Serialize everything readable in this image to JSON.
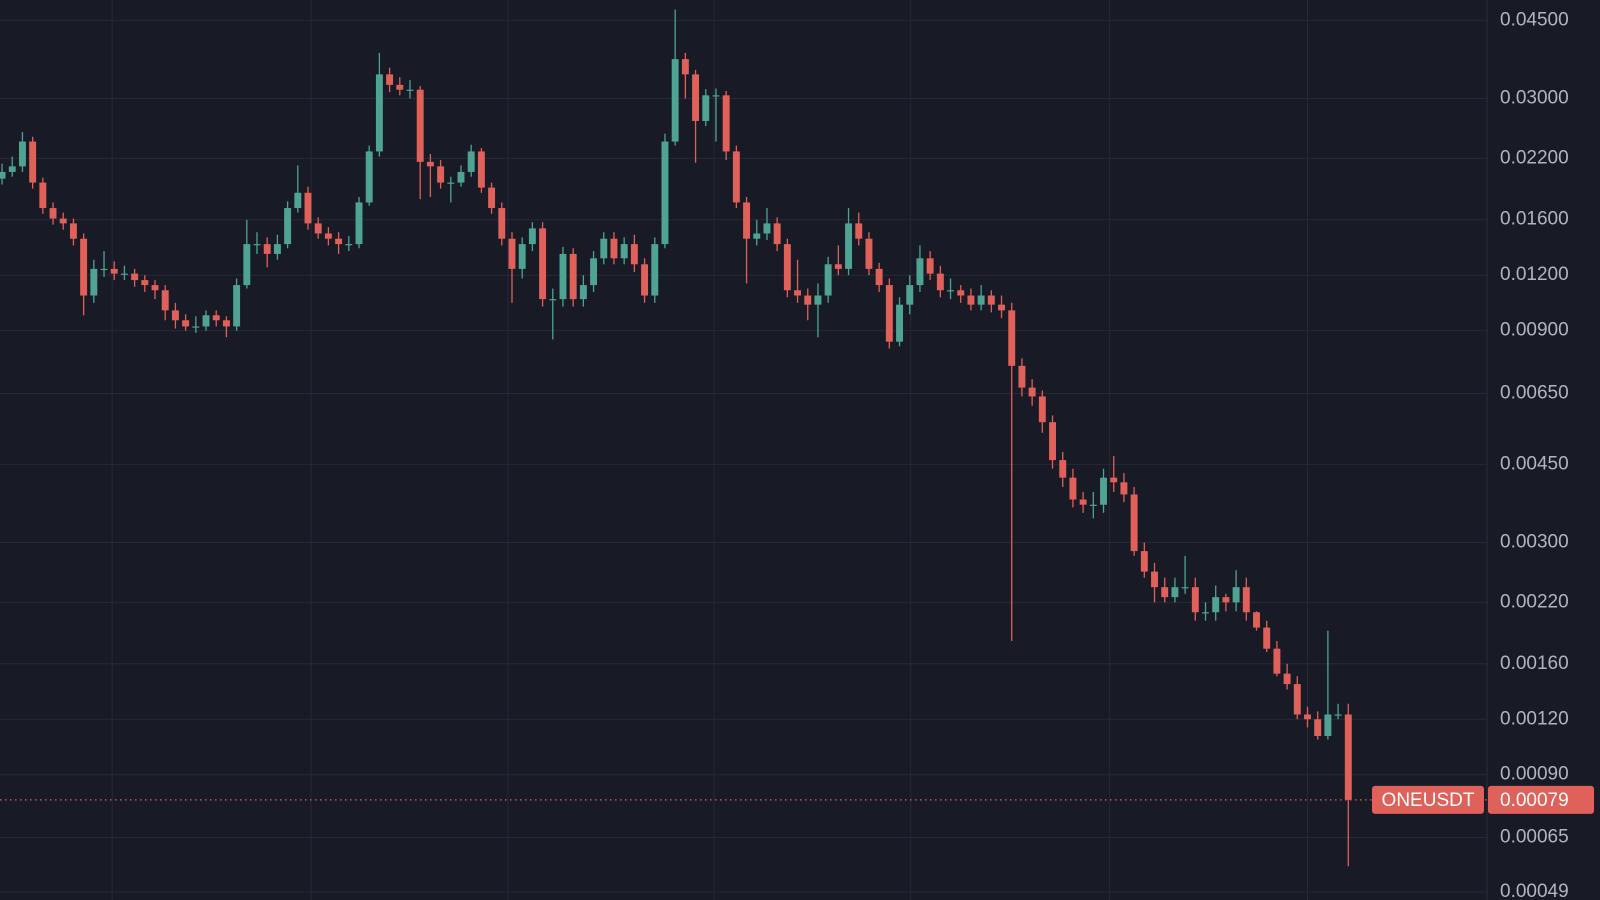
{
  "chart_data": {
    "type": "candlestick",
    "symbol": "ONEUSDT",
    "last_price": 0.00079,
    "last_price_label": "0.00079",
    "log_scale": true,
    "grid": true,
    "up_color": "#4fa393",
    "down_color": "#e0605a",
    "ylim": [
      0.00047,
      0.05
    ],
    "xlim": [
      -0.2,
      145.6
    ],
    "xticks": [
      10.8,
      30.3,
      49.6,
      69.8,
      89.1,
      108.6,
      128
    ],
    "yticks": [
      {
        "value": 0.045,
        "label": "0.04500"
      },
      {
        "value": 0.03,
        "label": "0.03000"
      },
      {
        "value": 0.022,
        "label": "0.02200"
      },
      {
        "value": 0.016,
        "label": "0.01600"
      },
      {
        "value": 0.012,
        "label": "0.01200"
      },
      {
        "value": 0.009,
        "label": "0.00900"
      },
      {
        "value": 0.0065,
        "label": "0.00650"
      },
      {
        "value": 0.0045,
        "label": "0.00450"
      },
      {
        "value": 0.003,
        "label": "0.00300"
      },
      {
        "value": 0.0022,
        "label": "0.00220"
      },
      {
        "value": 0.0016,
        "label": "0.00160"
      },
      {
        "value": 0.0012,
        "label": "0.00120"
      },
      {
        "value": 0.0009,
        "label": "0.00090"
      },
      {
        "value": 0.00065,
        "label": "0.00065"
      },
      {
        "value": 0.00049,
        "label": "0.00049"
      }
    ],
    "open": [
      0.0198,
      0.0205,
      0.0211,
      0.024,
      0.0194,
      0.017,
      0.0161,
      0.0157,
      0.0145,
      0.0108,
      0.0124,
      0.0124,
      0.0121,
      0.0121,
      0.0117,
      0.0114,
      0.0111,
      0.01,
      0.0095,
      0.0092,
      0.0092,
      0.00975,
      0.0095,
      0.0092,
      0.0114,
      0.0141,
      0.0141,
      0.0134,
      0.0141,
      0.017,
      0.0184,
      0.0157,
      0.0149,
      0.0145,
      0.0141,
      0.0141,
      0.0175,
      0.0228,
      0.034,
      0.0322,
      0.0314,
      0.0314,
      0.0216,
      0.0211,
      0.0194,
      0.0194,
      0.0205,
      0.0228,
      0.0189,
      0.017,
      0.0145,
      0.0124,
      0.0141,
      0.0153,
      0.0106,
      0.0106,
      0.0134,
      0.0106,
      0.0114,
      0.0131,
      0.0145,
      0.0131,
      0.0141,
      0.0127,
      0.0108,
      0.0141,
      0.024,
      0.0368,
      0.034,
      0.0267,
      0.0305,
      0.0305,
      0.0228,
      0.0175,
      0.0145,
      0.0149,
      0.0157,
      0.0141,
      0.0111,
      0.0108,
      0.0103,
      0.0108,
      0.0127,
      0.0124,
      0.0157,
      0.0145,
      0.0124,
      0.0114,
      0.0085,
      0.0103,
      0.0114,
      0.0131,
      0.0121,
      0.0111,
      0.0111,
      0.0108,
      0.0103,
      0.0108,
      0.0103,
      0.01,
      0.0075,
      0.0067,
      0.0064,
      0.0056,
      0.0046,
      0.0042,
      0.00375,
      0.00365,
      0.00365,
      0.0042,
      0.0041,
      0.00385,
      0.00287,
      0.00258,
      0.00238,
      0.00226,
      0.00238,
      0.00238,
      0.00209,
      0.00209,
      0.00226,
      0.0022,
      0.00238,
      0.00209,
      0.00193,
      0.00173,
      0.00152,
      0.00144,
      0.00123,
      0.0012,
      0.0011,
      0.00123,
      0.00123
    ],
    "high": [
      0.0214,
      0.0222,
      0.0252,
      0.0246,
      0.0199,
      0.0175,
      0.0166,
      0.0161,
      0.0149,
      0.013,
      0.0136,
      0.0129,
      0.0126,
      0.0124,
      0.012,
      0.0117,
      0.0114,
      0.0104,
      0.0098,
      0.0097,
      0.01,
      0.01,
      0.0097,
      0.0118,
      0.016,
      0.015,
      0.0146,
      0.0148,
      0.0176,
      0.0212,
      0.019,
      0.0162,
      0.0154,
      0.015,
      0.0147,
      0.018,
      0.0235,
      0.038,
      0.0352,
      0.0335,
      0.033,
      0.032,
      0.0225,
      0.0218,
      0.02,
      0.0212,
      0.0236,
      0.0232,
      0.0194,
      0.0175,
      0.015,
      0.0146,
      0.0158,
      0.0158,
      0.0112,
      0.0139,
      0.0138,
      0.012,
      0.0136,
      0.015,
      0.015,
      0.0146,
      0.0148,
      0.0131,
      0.0146,
      0.025,
      0.0476,
      0.038,
      0.0348,
      0.0315,
      0.0316,
      0.0312,
      0.0235,
      0.018,
      0.016,
      0.017,
      0.0162,
      0.0145,
      0.013,
      0.0112,
      0.0115,
      0.0132,
      0.014,
      0.017,
      0.0166,
      0.015,
      0.0128,
      0.0118,
      0.0107,
      0.012,
      0.014,
      0.0136,
      0.0126,
      0.0118,
      0.0114,
      0.0112,
      0.0114,
      0.0111,
      0.0108,
      0.0104,
      0.0078,
      0.007,
      0.0066,
      0.0058,
      0.0048,
      0.0044,
      0.0039,
      0.0039,
      0.0044,
      0.0047,
      0.0043,
      0.004,
      0.003,
      0.0027,
      0.0025,
      0.0025,
      0.0028,
      0.0025,
      0.0022,
      0.0024,
      0.0023,
      0.0026,
      0.0025,
      0.0021,
      0.002,
      0.0018,
      0.0016,
      0.0015,
      0.00128,
      0.00125,
      0.0019,
      0.0013,
      0.0013
    ],
    "low": [
      0.0192,
      0.02,
      0.0205,
      0.0188,
      0.0165,
      0.0156,
      0.0152,
      0.014,
      0.00975,
      0.0104,
      0.0119,
      0.0117,
      0.0117,
      0.0113,
      0.011,
      0.0106,
      0.0095,
      0.0091,
      0.009,
      0.0089,
      0.009,
      0.0092,
      0.0087,
      0.009,
      0.0112,
      0.0134,
      0.0125,
      0.013,
      0.0138,
      0.0166,
      0.0152,
      0.0145,
      0.014,
      0.0134,
      0.0136,
      0.0138,
      0.0172,
      0.0222,
      0.031,
      0.0305,
      0.03,
      0.0178,
      0.018,
      0.0188,
      0.0175,
      0.019,
      0.02,
      0.0184,
      0.0165,
      0.014,
      0.0104,
      0.0118,
      0.0136,
      0.0102,
      0.0086,
      0.0102,
      0.0102,
      0.0102,
      0.011,
      0.0127,
      0.0127,
      0.0127,
      0.0122,
      0.0104,
      0.0104,
      0.0138,
      0.0235,
      0.03,
      0.0215,
      0.026,
      0.024,
      0.0218,
      0.017,
      0.0115,
      0.014,
      0.0144,
      0.0136,
      0.0107,
      0.0104,
      0.0095,
      0.0087,
      0.0104,
      0.012,
      0.012,
      0.014,
      0.012,
      0.011,
      0.0082,
      0.0083,
      0.0098,
      0.011,
      0.0117,
      0.0107,
      0.0106,
      0.0104,
      0.01,
      0.01,
      0.0099,
      0.0096,
      0.0018,
      0.0064,
      0.0061,
      0.0053,
      0.0044,
      0.004,
      0.0036,
      0.0035,
      0.0034,
      0.0035,
      0.0039,
      0.0037,
      0.0028,
      0.0025,
      0.0022,
      0.0022,
      0.0022,
      0.0023,
      0.002,
      0.002,
      0.002,
      0.0021,
      0.0021,
      0.002,
      0.0019,
      0.0017,
      0.0015,
      0.0014,
      0.0012,
      0.00115,
      0.00108,
      0.00108,
      0.0012,
      0.00056
    ],
    "close": [
      0.0205,
      0.0211,
      0.024,
      0.0194,
      0.017,
      0.0161,
      0.0157,
      0.0145,
      0.0108,
      0.0124,
      0.0124,
      0.0121,
      0.0121,
      0.0117,
      0.0114,
      0.0111,
      0.01,
      0.0095,
      0.0092,
      0.0092,
      0.00975,
      0.0095,
      0.0092,
      0.0114,
      0.0141,
      0.0141,
      0.0134,
      0.0141,
      0.017,
      0.0184,
      0.0157,
      0.0149,
      0.0145,
      0.0141,
      0.0141,
      0.0175,
      0.0228,
      0.034,
      0.0322,
      0.0314,
      0.0314,
      0.0216,
      0.0211,
      0.0194,
      0.0194,
      0.0205,
      0.0228,
      0.0189,
      0.017,
      0.0145,
      0.0124,
      0.0141,
      0.0153,
      0.0106,
      0.0106,
      0.0134,
      0.0106,
      0.0114,
      0.0131,
      0.0145,
      0.0131,
      0.0141,
      0.0127,
      0.0108,
      0.0141,
      0.024,
      0.0368,
      0.034,
      0.0267,
      0.0305,
      0.0305,
      0.0228,
      0.0175,
      0.0145,
      0.0149,
      0.0157,
      0.0141,
      0.0111,
      0.0108,
      0.0103,
      0.0108,
      0.0127,
      0.0124,
      0.0157,
      0.0145,
      0.0124,
      0.0114,
      0.0085,
      0.0103,
      0.0114,
      0.0131,
      0.0121,
      0.0111,
      0.0111,
      0.0108,
      0.0103,
      0.0108,
      0.0103,
      0.01,
      0.0075,
      0.0067,
      0.0064,
      0.0056,
      0.0046,
      0.0042,
      0.00375,
      0.00365,
      0.00365,
      0.0042,
      0.0041,
      0.00385,
      0.00287,
      0.00258,
      0.00238,
      0.00226,
      0.00238,
      0.00238,
      0.00209,
      0.00209,
      0.00226,
      0.0022,
      0.00238,
      0.00209,
      0.00193,
      0.00173,
      0.00152,
      0.00144,
      0.00123,
      0.0012,
      0.0011,
      0.00123,
      0.00123,
      0.00079
    ]
  }
}
